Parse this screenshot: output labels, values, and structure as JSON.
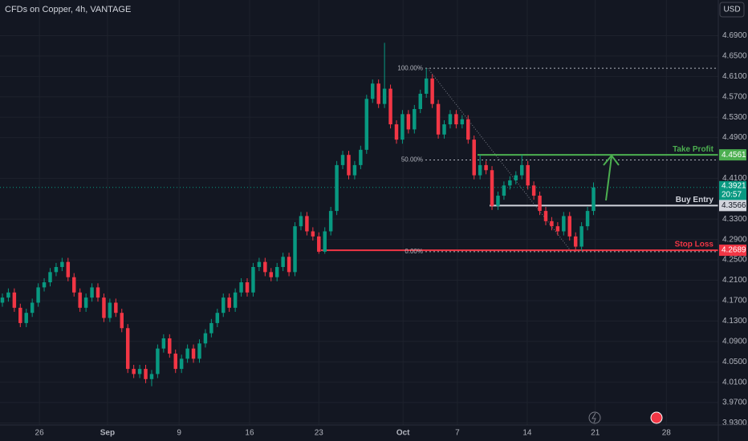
{
  "chart_data": {
    "type": "candlestick",
    "title": "CFDs on Copper, 4h, VANTAGE",
    "currency": "USD",
    "up_color": "#089981",
    "down_color": "#f23645",
    "grid": true,
    "x": [
      0,
      1,
      2,
      3,
      4,
      5,
      6,
      7,
      8,
      9,
      10,
      11,
      12,
      13,
      14,
      15,
      16,
      17,
      18,
      19,
      20,
      21,
      22,
      23,
      24,
      25,
      26,
      27,
      28,
      29,
      30,
      31,
      32,
      33,
      34,
      35,
      36,
      37,
      38,
      39,
      40,
      41,
      42,
      43,
      44,
      45,
      46,
      47,
      48,
      49,
      50,
      51,
      52,
      53,
      54,
      55,
      56,
      57,
      58,
      59,
      60,
      61,
      62,
      63,
      64,
      65,
      66,
      67,
      68,
      69,
      70,
      71,
      72,
      73,
      74,
      75,
      76,
      77,
      78,
      79,
      80,
      81,
      82,
      83,
      84,
      85,
      86,
      87,
      88,
      89,
      90,
      91,
      92,
      93,
      94,
      95,
      96,
      97,
      98,
      99
    ],
    "open": [
      4.166,
      4.176,
      4.186,
      4.156,
      4.126,
      4.146,
      4.166,
      4.196,
      4.206,
      4.226,
      4.236,
      4.246,
      4.216,
      4.186,
      4.156,
      4.176,
      4.196,
      4.176,
      4.136,
      4.166,
      4.146,
      4.116,
      4.036,
      4.026,
      4.036,
      4.016,
      4.026,
      4.076,
      4.096,
      4.066,
      4.036,
      4.056,
      4.076,
      4.056,
      4.086,
      4.106,
      4.126,
      4.146,
      4.176,
      4.156,
      4.186,
      4.206,
      4.186,
      4.236,
      4.246,
      4.226,
      4.216,
      4.236,
      4.256,
      4.226,
      4.316,
      4.336,
      4.306,
      4.296,
      4.266,
      4.306,
      4.346,
      4.436,
      4.456,
      4.416,
      4.436,
      4.466,
      4.566,
      4.596,
      4.556,
      4.586,
      4.516,
      4.486,
      4.536,
      4.506,
      4.546,
      4.576,
      4.606,
      4.556,
      4.496,
      4.516,
      4.536,
      4.516,
      4.526,
      4.486,
      4.416,
      4.436,
      4.426,
      4.356,
      4.376,
      4.396,
      4.406,
      4.416,
      4.436,
      4.396,
      4.376,
      4.346,
      4.326,
      4.316,
      4.306,
      4.336,
      4.296,
      4.276,
      4.316,
      4.346
    ],
    "high": [
      4.184,
      4.194,
      4.194,
      4.164,
      4.154,
      4.174,
      4.204,
      4.214,
      4.234,
      4.244,
      4.254,
      4.254,
      4.224,
      4.194,
      4.184,
      4.204,
      4.204,
      4.184,
      4.174,
      4.174,
      4.154,
      4.124,
      4.044,
      4.044,
      4.044,
      4.034,
      4.084,
      4.104,
      4.104,
      4.074,
      4.064,
      4.084,
      4.084,
      4.094,
      4.114,
      4.134,
      4.154,
      4.184,
      4.184,
      4.194,
      4.214,
      4.214,
      4.244,
      4.254,
      4.254,
      4.234,
      4.244,
      4.264,
      4.264,
      4.324,
      4.344,
      4.344,
      4.314,
      4.304,
      4.314,
      4.354,
      4.444,
      4.464,
      4.464,
      4.444,
      4.474,
      4.574,
      4.604,
      4.604,
      4.676,
      4.594,
      4.524,
      4.544,
      4.544,
      4.554,
      4.584,
      4.626,
      4.614,
      4.564,
      4.524,
      4.544,
      4.544,
      4.534,
      4.534,
      4.494,
      4.456,
      4.444,
      4.434,
      4.384,
      4.404,
      4.414,
      4.424,
      4.456,
      4.444,
      4.404,
      4.384,
      4.354,
      4.334,
      4.324,
      4.344,
      4.344,
      4.304,
      4.324,
      4.354,
      4.402
    ],
    "low": [
      4.158,
      4.168,
      4.148,
      4.118,
      4.118,
      4.138,
      4.158,
      4.188,
      4.198,
      4.218,
      4.228,
      4.208,
      4.178,
      4.148,
      4.148,
      4.168,
      4.168,
      4.128,
      4.128,
      4.138,
      4.108,
      4.028,
      4.018,
      4.018,
      4.008,
      4.002,
      4.018,
      4.068,
      4.058,
      4.028,
      4.028,
      4.048,
      4.048,
      4.048,
      4.078,
      4.098,
      4.118,
      4.138,
      4.148,
      4.148,
      4.178,
      4.178,
      4.178,
      4.228,
      4.218,
      4.208,
      4.208,
      4.228,
      4.218,
      4.218,
      4.308,
      4.298,
      4.288,
      4.262,
      4.262,
      4.298,
      4.338,
      4.428,
      4.408,
      4.408,
      4.428,
      4.458,
      4.558,
      4.548,
      4.548,
      4.508,
      4.478,
      4.478,
      4.498,
      4.498,
      4.538,
      4.568,
      4.548,
      4.488,
      4.488,
      4.508,
      4.508,
      4.508,
      4.478,
      4.408,
      4.408,
      4.418,
      4.348,
      4.348,
      4.368,
      4.388,
      4.398,
      4.408,
      4.388,
      4.368,
      4.338,
      4.318,
      4.308,
      4.298,
      4.298,
      4.288,
      4.266,
      4.268,
      4.308,
      4.338
    ],
    "close": [
      4.176,
      4.186,
      4.156,
      4.126,
      4.146,
      4.166,
      4.196,
      4.206,
      4.226,
      4.236,
      4.246,
      4.216,
      4.186,
      4.156,
      4.176,
      4.196,
      4.176,
      4.136,
      4.166,
      4.146,
      4.116,
      4.036,
      4.026,
      4.036,
      4.016,
      4.026,
      4.076,
      4.096,
      4.066,
      4.036,
      4.056,
      4.076,
      4.056,
      4.086,
      4.106,
      4.126,
      4.146,
      4.176,
      4.156,
      4.186,
      4.206,
      4.186,
      4.236,
      4.246,
      4.226,
      4.216,
      4.236,
      4.256,
      4.226,
      4.316,
      4.336,
      4.306,
      4.296,
      4.266,
      4.306,
      4.346,
      4.436,
      4.456,
      4.416,
      4.436,
      4.466,
      4.566,
      4.596,
      4.556,
      4.586,
      4.516,
      4.486,
      4.536,
      4.506,
      4.546,
      4.576,
      4.606,
      4.556,
      4.496,
      4.516,
      4.536,
      4.516,
      4.526,
      4.486,
      4.416,
      4.436,
      4.426,
      4.356,
      4.376,
      4.396,
      4.406,
      4.416,
      4.436,
      4.396,
      4.376,
      4.346,
      4.326,
      4.316,
      4.306,
      4.336,
      4.296,
      4.276,
      4.316,
      4.346,
      4.3921
    ],
    "xlim": [
      -0.4,
      119.9
    ],
    "xticks": [
      {
        "value": 6.2,
        "label": "26"
      },
      {
        "value": 17.6,
        "label": "Sep"
      },
      {
        "value": 29.6,
        "label": "9"
      },
      {
        "value": 41.4,
        "label": "16"
      },
      {
        "value": 53.0,
        "label": "23"
      },
      {
        "value": 67.1,
        "label": "Oct"
      },
      {
        "value": 76.2,
        "label": "7"
      },
      {
        "value": 87.9,
        "label": "14"
      },
      {
        "value": 99.3,
        "label": "21"
      },
      {
        "value": 111.2,
        "label": "28"
      }
    ],
    "ylim": [
      3.926,
      4.76
    ],
    "yticks": [
      {
        "value": 4.69,
        "label": "4.6900"
      },
      {
        "value": 4.65,
        "label": "4.6500"
      },
      {
        "value": 4.61,
        "label": "4.6100"
      },
      {
        "value": 4.57,
        "label": "4.5700"
      },
      {
        "value": 4.53,
        "label": "4.5300"
      },
      {
        "value": 4.49,
        "label": "4.4900"
      },
      {
        "value": 4.41,
        "label": "4.4100"
      },
      {
        "value": 4.33,
        "label": "4.3300"
      },
      {
        "value": 4.29,
        "label": "4.2900"
      },
      {
        "value": 4.25,
        "label": "4.2500"
      },
      {
        "value": 4.21,
        "label": "4.2100"
      },
      {
        "value": 4.17,
        "label": "4.1700"
      },
      {
        "value": 4.13,
        "label": "4.1300"
      },
      {
        "value": 4.09,
        "label": "4.0900"
      },
      {
        "value": 4.05,
        "label": "4.0500"
      },
      {
        "value": 4.01,
        "label": "4.0100"
      },
      {
        "value": 3.97,
        "label": "3.9700"
      },
      {
        "value": 3.93,
        "label": "3.9300"
      }
    ],
    "levels": [
      {
        "name": "Take Profit",
        "value": 4.4561,
        "color": "#4caf50"
      },
      {
        "name": "Buy Entry",
        "value": 4.3566,
        "color": "#d1d4dc"
      },
      {
        "name": "Stop Loss",
        "value": 4.2689,
        "color": "#f23645"
      }
    ],
    "fib": [
      {
        "ratio": 100,
        "label": "100.00%",
        "price": 4.626
      },
      {
        "ratio": 50,
        "label": "50.00%",
        "price": 4.446
      },
      {
        "ratio": 0,
        "label": "0.00%",
        "price": 4.266
      }
    ],
    "last": {
      "value": 4.3921,
      "countdown": "20:57",
      "color": "#089981"
    }
  }
}
